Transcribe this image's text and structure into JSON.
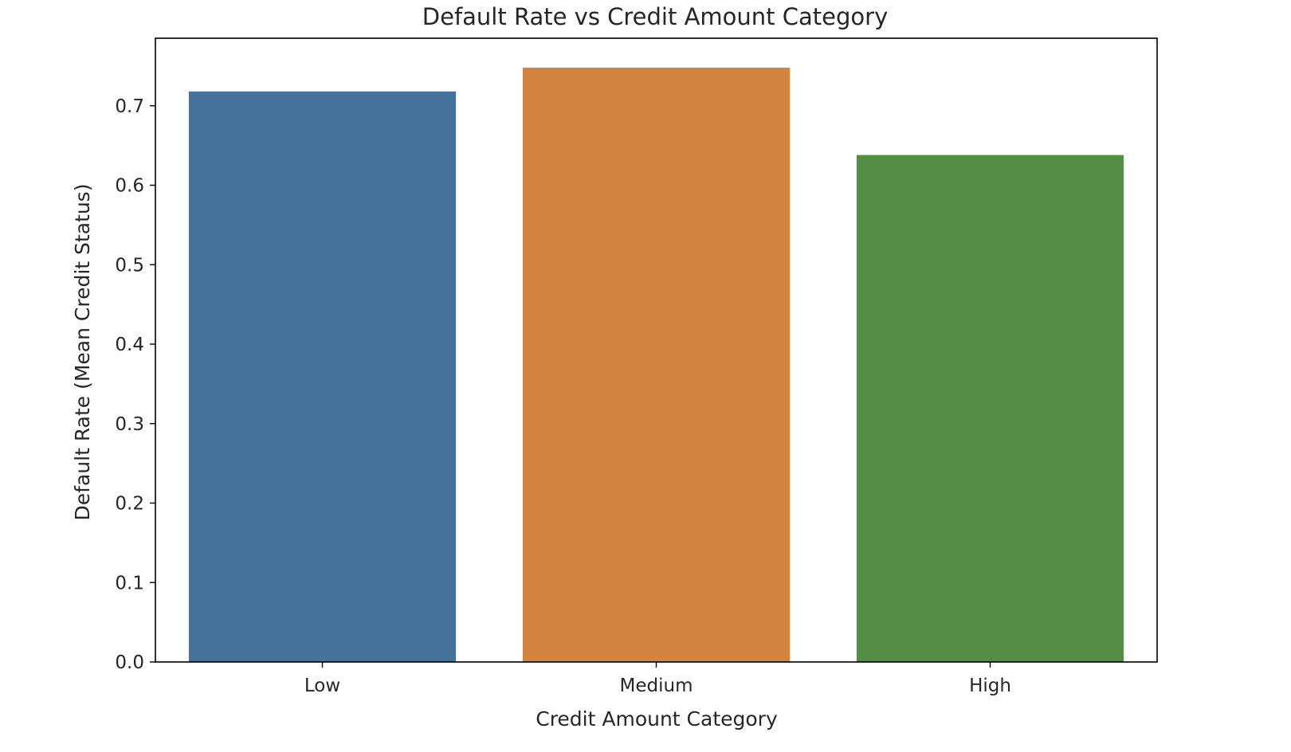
{
  "chart_data": {
    "type": "bar",
    "title": "Default Rate vs Credit Amount Category",
    "xlabel": "Credit Amount Category",
    "ylabel": "Default Rate (Mean Credit Status)",
    "categories": [
      "Low",
      "Medium",
      "High"
    ],
    "values": [
      0.718,
      0.748,
      0.638
    ],
    "colors": [
      "#44729a",
      "#d38440",
      "#538e44"
    ],
    "ylim": [
      0,
      0.785
    ],
    "yticks": [
      0.0,
      0.1,
      0.2,
      0.3,
      0.4,
      0.5,
      0.6,
      0.7
    ],
    "ytick_labels": [
      "0.0",
      "0.1",
      "0.2",
      "0.3",
      "0.4",
      "0.5",
      "0.6",
      "0.7"
    ],
    "grid": false,
    "legend": "none"
  }
}
